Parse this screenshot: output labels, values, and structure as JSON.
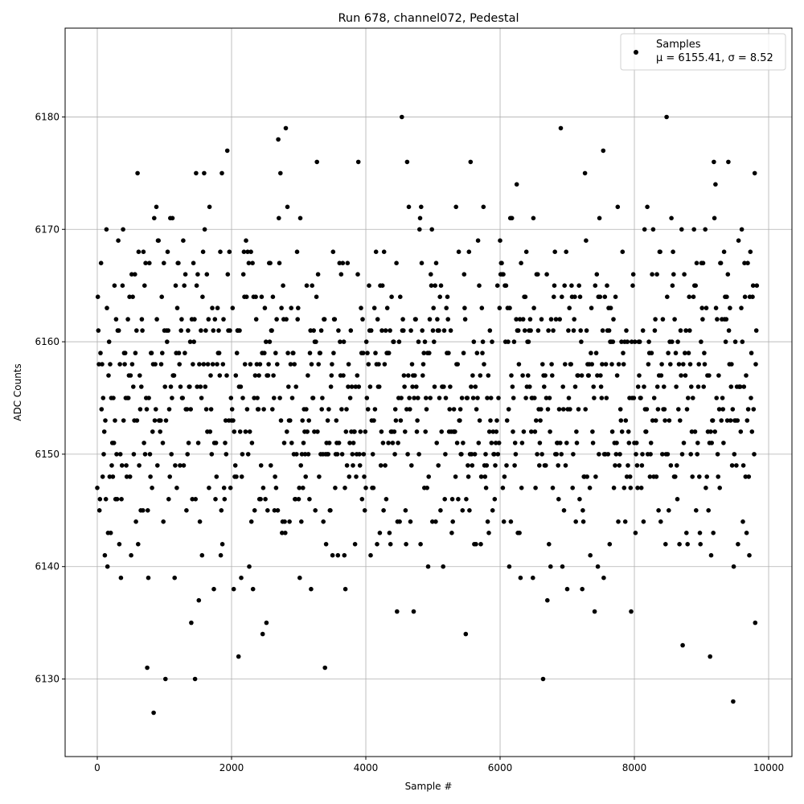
{
  "chart_data": {
    "type": "scatter",
    "title": "Run 678, channel072, Pedestal",
    "xlabel": "Sample #",
    "ylabel": "ADC Counts",
    "xlim": [
      -479,
      10347
    ],
    "ylim": [
      6123.1,
      6187.9
    ],
    "xticks": [
      0,
      2000,
      4000,
      6000,
      8000,
      10000
    ],
    "yticks": [
      6130,
      6140,
      6150,
      6160,
      6170,
      6180
    ],
    "grid": true,
    "legend_placement": "top-right",
    "legend": {
      "label": "Samples",
      "stats": "μ = 6155.41, σ = 8.52"
    },
    "stats": {
      "mean": 6155.41,
      "sigma": 8.52
    },
    "sample_range": [
      0,
      9830
    ],
    "marker_color": "#000000",
    "value_resolution": 1
  }
}
